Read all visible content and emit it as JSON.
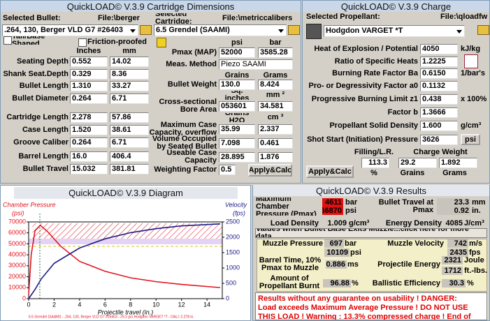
{
  "cartridge": {
    "title": "QuickLOAD© V.3.9 Cartridge Dimensions",
    "bullet_label": "Selected Bullet:",
    "bullet_file": "File:\\berger",
    "bullet": ".264, 130, Berger VLD  G7 #26403",
    "cartridge_label": "Selected Cartridge:",
    "cartridge_file": "File:\\metriccalibers",
    "cartridge": "6.5 Grendel  (SAAMI)",
    "tail_base": "Tail/Base Shaped",
    "friction": "Friction-proofed",
    "col_inches": "Inches",
    "col_mm": "mm",
    "dims": [
      {
        "label": "Seating Depth",
        "inches": "0.552",
        "mm": "14.02"
      },
      {
        "label": "Shank Seat.Depth",
        "inches": "0.329",
        "mm": "8.36"
      },
      {
        "label": "Bullet Length",
        "inches": "1.310",
        "mm": "33.27"
      },
      {
        "label": "Bullet Diameter",
        "inches": "0.264",
        "mm": "6.71"
      },
      {
        "label": "Cartridge Length",
        "inches": "2.278",
        "mm": "57.86"
      },
      {
        "label": "Case Length",
        "inches": "1.520",
        "mm": "38.61"
      },
      {
        "label": "Groove Caliber",
        "inches": "0.264",
        "mm": "6.71"
      },
      {
        "label": "Barrel Length",
        "inches": "16.0",
        "mm": "406.4"
      },
      {
        "label": "Bullet Travel",
        "inches": "15.032",
        "mm": "381.81"
      }
    ],
    "pmax_headers": [
      "psi",
      "bar"
    ],
    "pmax": {
      "label": "Pmax (MAP)",
      "a": "52000",
      "b": "3585.28"
    },
    "method": {
      "label": "Meas. Method",
      "value": "Piezo SAAMI"
    },
    "weight_headers": [
      "Grains",
      "Grams"
    ],
    "weight": {
      "label": "Bullet Weight",
      "a": "130.0",
      "b": "8.424"
    },
    "bore_headers": [
      "Sq. inches",
      "mm ²"
    ],
    "bore": {
      "label": "Cross-sectional Bore Area",
      "a": "053601",
      "b": "34.581"
    },
    "capacity_headers": [
      "Grains H2O",
      "cm ³"
    ],
    "capacity": [
      {
        "label": "Maximum Case Capacity, overflow",
        "a": "35.99",
        "b": "2.337"
      },
      {
        "label": "Volume Occupied by Seated Bullet",
        "a": "7.098",
        "b": "0.461"
      },
      {
        "label": "Useable Case Capacity",
        "a": "28.895",
        "b": "1.876"
      }
    ],
    "weighting": {
      "label": "Weighting Factor",
      "value": "0.5"
    },
    "button": "Apply&Calc"
  },
  "charge": {
    "title": "QuickLOAD© V.3.9 Charge",
    "propellant_label": "Selected Propellant:",
    "file": "File:\\qloadfw",
    "propellant": "Hodgdon VARGET *T",
    "rows": [
      {
        "label": "Heat of Explosion / Potential",
        "value": "4050",
        "unit": "kJ/kg"
      },
      {
        "label": "Ratio of Specific Heats",
        "value": "1.2225"
      },
      {
        "label": "Burning Rate Factor  Ba",
        "value": "0.6150",
        "unit": "1/bar's"
      },
      {
        "label": "Pro- or Degressivity Factor  a0",
        "value": "0.1132"
      },
      {
        "label": "Progressive Burning Limit z1",
        "value": "0.438",
        "unit": "x 100%"
      },
      {
        "label": "Factor  b",
        "value": "1.3666"
      },
      {
        "label": "Propellant Solid Density",
        "value": "1.600",
        "unit": "g/cm³"
      }
    ],
    "shot_start": {
      "label": "Shot Start (Initiation) Pressure",
      "value": "3626",
      "button": "psi"
    },
    "filling_label": "Filling/L.R.",
    "filling": "113.3",
    "filling_unit": "%",
    "charge_label": "Charge Weight",
    "grains": "29.2",
    "grains_unit": "Grains",
    "grams": "1.892",
    "grams_unit": "Grams",
    "button": "Apply&Calc"
  },
  "diagram": {
    "title": "QuickLOAD© V.3.9 Diagram",
    "chart": {
      "type": "line",
      "y_unit": "(psi)",
      "y2_unit": "(fps)",
      "x_label": "Projectile travel (in.)",
      "footnote": "6.5 Grendel (SAAMI) - .264, 130, Berger VLD G7 #26403 - 29.2 grs Hodgdon VARGET *T - OAL= 2.278 in.",
      "xlim": [
        0,
        15.2
      ],
      "xticks": [
        0,
        2,
        4,
        6,
        8,
        10,
        12,
        14
      ],
      "ylim": [
        0,
        70000
      ],
      "yticks": [
        0,
        10000,
        20000,
        30000,
        40000,
        50000,
        60000,
        70000
      ],
      "y2lim": [
        0,
        2500
      ],
      "y2ticks": [
        0,
        500,
        1000,
        1500,
        2000,
        2500
      ],
      "series": [
        {
          "name": "Chamber Pressure",
          "color": "#e3141e",
          "x": [
            0,
            0.2,
            0.5,
            0.92,
            1.5,
            2.5,
            4,
            6,
            8,
            10,
            12,
            15.032
          ],
          "values": [
            3626,
            40000,
            62000,
            66870,
            61000,
            48000,
            34000,
            25000,
            19000,
            15500,
            13000,
            10109
          ]
        },
        {
          "name": "Velocity",
          "color": "#1a1a86",
          "axis": "y2",
          "x": [
            0,
            0.5,
            1,
            2,
            4,
            6,
            8,
            10,
            12,
            15.032
          ],
          "values": [
            0,
            300,
            650,
            1150,
            1650,
            1950,
            2150,
            2280,
            2370,
            2435
          ]
        }
      ]
    }
  },
  "results": {
    "title": "QuickLOAD© V.3.9 Results",
    "pmax_label": "Maximum Chamber Pressure (Pmax)",
    "pmax_bar": "4611",
    "bar": "bar",
    "pmax_psi": "66870",
    "psi": "psi",
    "travel_label": "Bullet Travel at Pmax",
    "travel_mm": "23.3",
    "mm": "mm",
    "travel_in": "0.92",
    "in": "in.",
    "load_density_label": "Load Density",
    "load_density": "1.009",
    "load_density_unit": "g/cm³",
    "energy_density_label": "Energy Density",
    "energy_density": "4085",
    "energy_density_unit": "J/cm³",
    "header": "Values when Bullet Base Exits Muzzle...click here for more data",
    "muzzle_pressure_label": "Muzzle Pressure",
    "muzzle_bar": "697",
    "muzzle_bar_unit": "bar",
    "muzzle_psi": "10109",
    "muzzle_psi_unit": "psi",
    "velocity_label": "Muzzle Velocity",
    "velocity_ms": "742",
    "velocity_ms_unit": "m/s",
    "velocity_fps": "2435",
    "velocity_fps_unit": "fps",
    "barrel_time_label": "Barrel Time, 10% Pmax to Muzzle",
    "barrel_time": "0.886",
    "barrel_time_unit": "ms",
    "energy_label": "Projectile Energy",
    "energy_j": "2321",
    "energy_j_unit": "Joule",
    "energy_ft": "1712",
    "energy_ft_unit": "ft.-lbs.",
    "burnt_label": "Amount of Propellant Burnt",
    "burnt": "96.88",
    "burnt_unit": "%",
    "efficiency_label": "Ballistic Efficiency",
    "efficiency": "30.3",
    "efficiency_unit": "%",
    "warning": "Results without any guarantee on usability !  DANGER: Load exceeds Maximum Average Pressure ! DO NOT USE THIS LOAD !  Warning : 13.3% compressed charge !  End of"
  }
}
